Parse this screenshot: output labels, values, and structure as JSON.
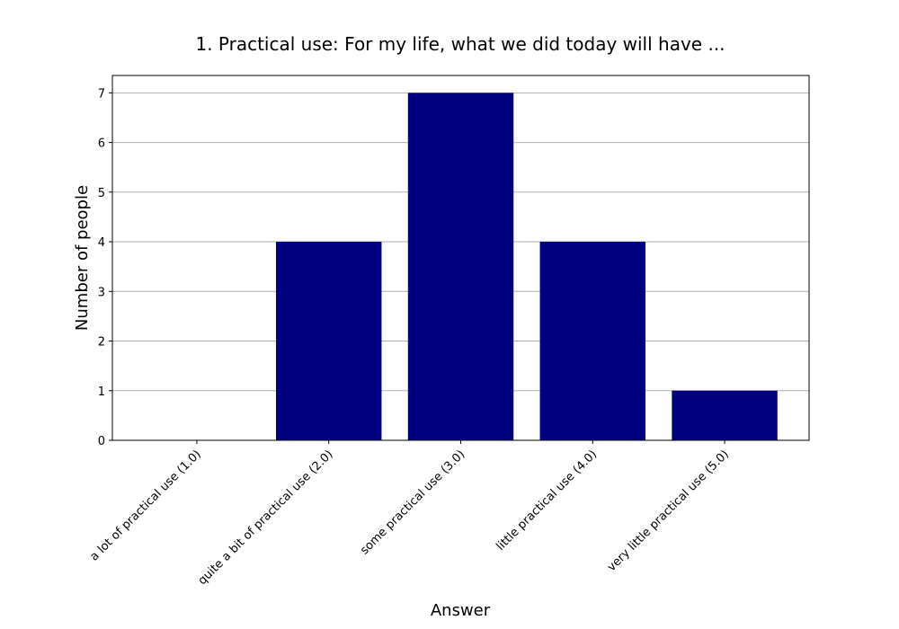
{
  "chart_data": {
    "type": "bar",
    "title": "1. Practical use: For my life, what we did today will have ...",
    "xlabel": "Answer",
    "ylabel": "Number of people",
    "categories": [
      "a lot of practical use (1.0)",
      "quite a bit of practical use (2.0)",
      "some practical use (3.0)",
      "little practical use (4.0)",
      "very little practical use (5.0)"
    ],
    "values": [
      0,
      4,
      7,
      4,
      1
    ],
    "ylim": [
      0,
      7.35
    ],
    "yticks": [
      "0",
      "1",
      "2",
      "3",
      "4",
      "5",
      "6",
      "7"
    ],
    "grid": "horizontal",
    "bar_color": "#000080",
    "grid_color": "#b0b0b0"
  }
}
